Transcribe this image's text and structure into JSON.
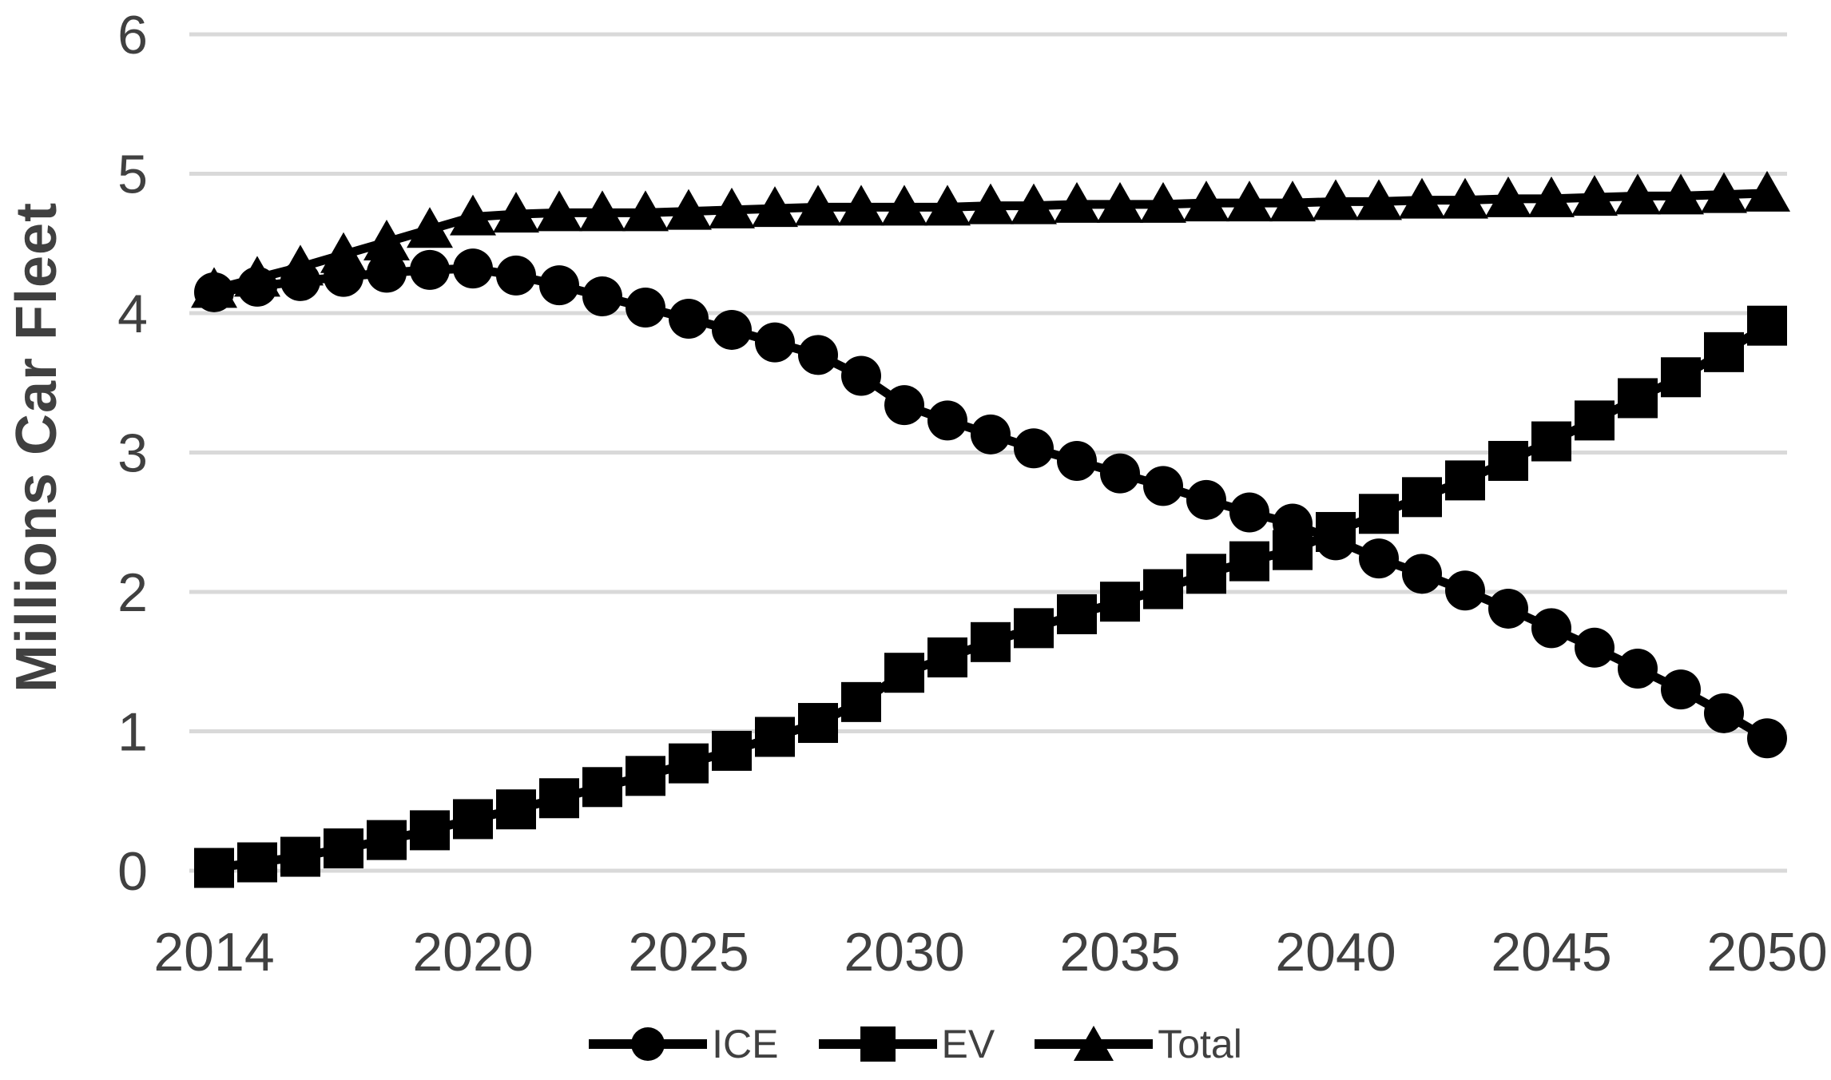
{
  "chart_data": {
    "type": "line",
    "title": "",
    "xlabel": "",
    "ylabel": "Millions Car Fleet",
    "ylim": [
      0,
      6
    ],
    "yticks": [
      0,
      1,
      2,
      3,
      4,
      5,
      6
    ],
    "xtick_labels": [
      2014,
      2020,
      2025,
      2030,
      2035,
      2040,
      2045,
      2050
    ],
    "grid": "horizontal",
    "legend_position": "bottom",
    "colors": {
      "series": "#000000",
      "gridline": "#D9D9D9",
      "axis_text": "#404040"
    },
    "x": [
      2014,
      2015,
      2016,
      2017,
      2018,
      2019,
      2020,
      2021,
      2022,
      2023,
      2024,
      2025,
      2026,
      2027,
      2028,
      2029,
      2030,
      2031,
      2032,
      2033,
      2034,
      2035,
      2036,
      2037,
      2038,
      2039,
      2040,
      2041,
      2042,
      2043,
      2044,
      2045,
      2046,
      2047,
      2048,
      2049,
      2050
    ],
    "series": [
      {
        "name": "ICE",
        "marker": "circle",
        "values": [
          4.15,
          4.19,
          4.23,
          4.26,
          4.29,
          4.31,
          4.32,
          4.27,
          4.2,
          4.12,
          4.04,
          3.96,
          3.88,
          3.79,
          3.7,
          3.55,
          3.34,
          3.23,
          3.13,
          3.03,
          2.94,
          2.85,
          2.76,
          2.66,
          2.57,
          2.49,
          2.37,
          2.24,
          2.13,
          2.01,
          1.88,
          1.74,
          1.6,
          1.45,
          1.3,
          1.13,
          0.95
        ]
      },
      {
        "name": "EV",
        "marker": "square",
        "values": [
          0.02,
          0.06,
          0.1,
          0.16,
          0.22,
          0.29,
          0.37,
          0.44,
          0.52,
          0.6,
          0.68,
          0.77,
          0.86,
          0.96,
          1.06,
          1.21,
          1.42,
          1.53,
          1.64,
          1.74,
          1.84,
          1.93,
          2.02,
          2.13,
          2.22,
          2.3,
          2.43,
          2.56,
          2.68,
          2.8,
          2.94,
          3.08,
          3.23,
          3.39,
          3.54,
          3.72,
          3.91
        ]
      },
      {
        "name": "Total",
        "marker": "triangle",
        "values": [
          4.17,
          4.25,
          4.33,
          4.42,
          4.51,
          4.6,
          4.69,
          4.71,
          4.72,
          4.72,
          4.72,
          4.73,
          4.74,
          4.75,
          4.76,
          4.76,
          4.76,
          4.76,
          4.77,
          4.77,
          4.78,
          4.78,
          4.78,
          4.79,
          4.79,
          4.79,
          4.8,
          4.8,
          4.81,
          4.81,
          4.82,
          4.82,
          4.83,
          4.84,
          4.84,
          4.85,
          4.86
        ]
      }
    ]
  }
}
